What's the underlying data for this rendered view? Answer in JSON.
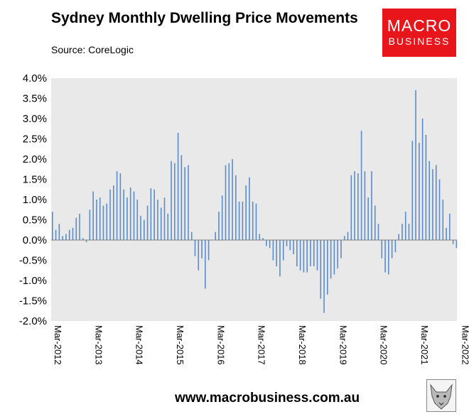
{
  "header": {
    "title": "Sydney Monthly Dwelling Price Movements",
    "source": "Source: CoreLogic"
  },
  "logo": {
    "line1": "MACRO",
    "line2": "BUSINESS"
  },
  "footer": {
    "website": "www.macrobusiness.com.au",
    "icon": "wolf-icon"
  },
  "colors": {
    "bar": "#5b8ccc",
    "plot_bg": "#e9e9e9",
    "logo_bg": "#e8161b"
  },
  "chart_data": {
    "type": "bar",
    "x_start": "Mar-2012",
    "x_end": "Mar-2022",
    "x_tick_labels": [
      "Mar-2012",
      "Mar-2013",
      "Mar-2014",
      "Mar-2015",
      "Mar-2016",
      "Mar-2017",
      "Mar-2018",
      "Mar-2019",
      "Mar-2020",
      "Mar-2021",
      "Mar-2022"
    ],
    "y_tick_labels": [
      "4.0%",
      "3.5%",
      "3.0%",
      "2.5%",
      "2.0%",
      "1.5%",
      "1.0%",
      "0.5%",
      "0.0%",
      "-0.5%",
      "-1.0%",
      "-1.5%",
      "-2.0%"
    ],
    "ylim": [
      -2.0,
      4.0
    ],
    "y_unit": "%",
    "grid": false,
    "legend": "none",
    "values": [
      0.7,
      0.25,
      0.4,
      0.1,
      0.15,
      0.25,
      0.3,
      0.55,
      0.65,
      0.05,
      -0.05,
      0.75,
      1.2,
      1.0,
      1.05,
      0.85,
      0.9,
      1.25,
      1.35,
      1.7,
      1.65,
      1.25,
      1.05,
      1.3,
      1.2,
      1.0,
      0.6,
      0.5,
      0.85,
      1.28,
      1.25,
      1.0,
      0.8,
      1.05,
      0.65,
      1.95,
      1.9,
      2.65,
      2.1,
      1.8,
      1.85,
      0.2,
      -0.4,
      -0.75,
      -0.45,
      -1.2,
      -0.5,
      0.0,
      0.2,
      0.7,
      1.1,
      1.85,
      1.9,
      2.0,
      1.6,
      0.95,
      0.95,
      1.35,
      1.55,
      0.95,
      0.9,
      0.15,
      0.05,
      -0.15,
      -0.2,
      -0.5,
      -0.65,
      -0.9,
      -0.5,
      -0.15,
      -0.25,
      -0.35,
      -0.65,
      -0.75,
      -0.8,
      -0.8,
      -0.65,
      -0.65,
      -0.75,
      -1.45,
      -1.8,
      -1.35,
      -0.95,
      -0.85,
      -0.7,
      -0.45,
      0.1,
      0.2,
      1.6,
      1.7,
      1.65,
      2.7,
      1.7,
      1.05,
      1.7,
      0.85,
      0.4,
      -0.45,
      -0.8,
      -0.85,
      -0.45,
      -0.3,
      0.15,
      0.4,
      0.7,
      0.4,
      2.45,
      3.7,
      2.4,
      3.0,
      2.6,
      1.95,
      1.75,
      1.85,
      1.5,
      1.0,
      0.3,
      0.65,
      -0.1,
      -0.2
    ]
  }
}
